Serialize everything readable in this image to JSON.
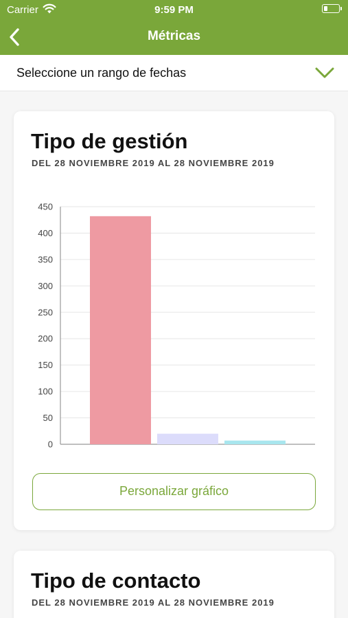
{
  "status_bar": {
    "carrier": "Carrier",
    "time": "9:59 PM"
  },
  "nav": {
    "title": "Métricas"
  },
  "date_range": {
    "label": "Seleccione un rango de fechas"
  },
  "card1": {
    "title": "Tipo de gestión",
    "subtitle": "DEL 28 NOVIEMBRE 2019 AL 28 NOVIEMBRE 2019",
    "button_label": "Personalizar gráfico"
  },
  "card2": {
    "title": "Tipo de contacto",
    "subtitle": "DEL 28 NOVIEMBRE 2019 AL 28 NOVIEMBRE 2019"
  },
  "colors": {
    "accent": "#7aa73a",
    "bar1": "#ee9aa2",
    "bar2": "#dcdcfb",
    "bar3": "#a8e6ee"
  },
  "chart_data": {
    "type": "bar",
    "title": "",
    "xlabel": "",
    "ylabel": "",
    "categories": [
      "",
      "",
      ""
    ],
    "values": [
      432,
      20,
      7
    ],
    "colors": [
      "#ee9aa2",
      "#dcdcfb",
      "#a8e6ee"
    ],
    "ylim": [
      0,
      450
    ],
    "yticks": [
      0,
      50,
      100,
      150,
      200,
      250,
      300,
      350,
      400,
      450
    ],
    "grid": true,
    "legend": "none"
  }
}
